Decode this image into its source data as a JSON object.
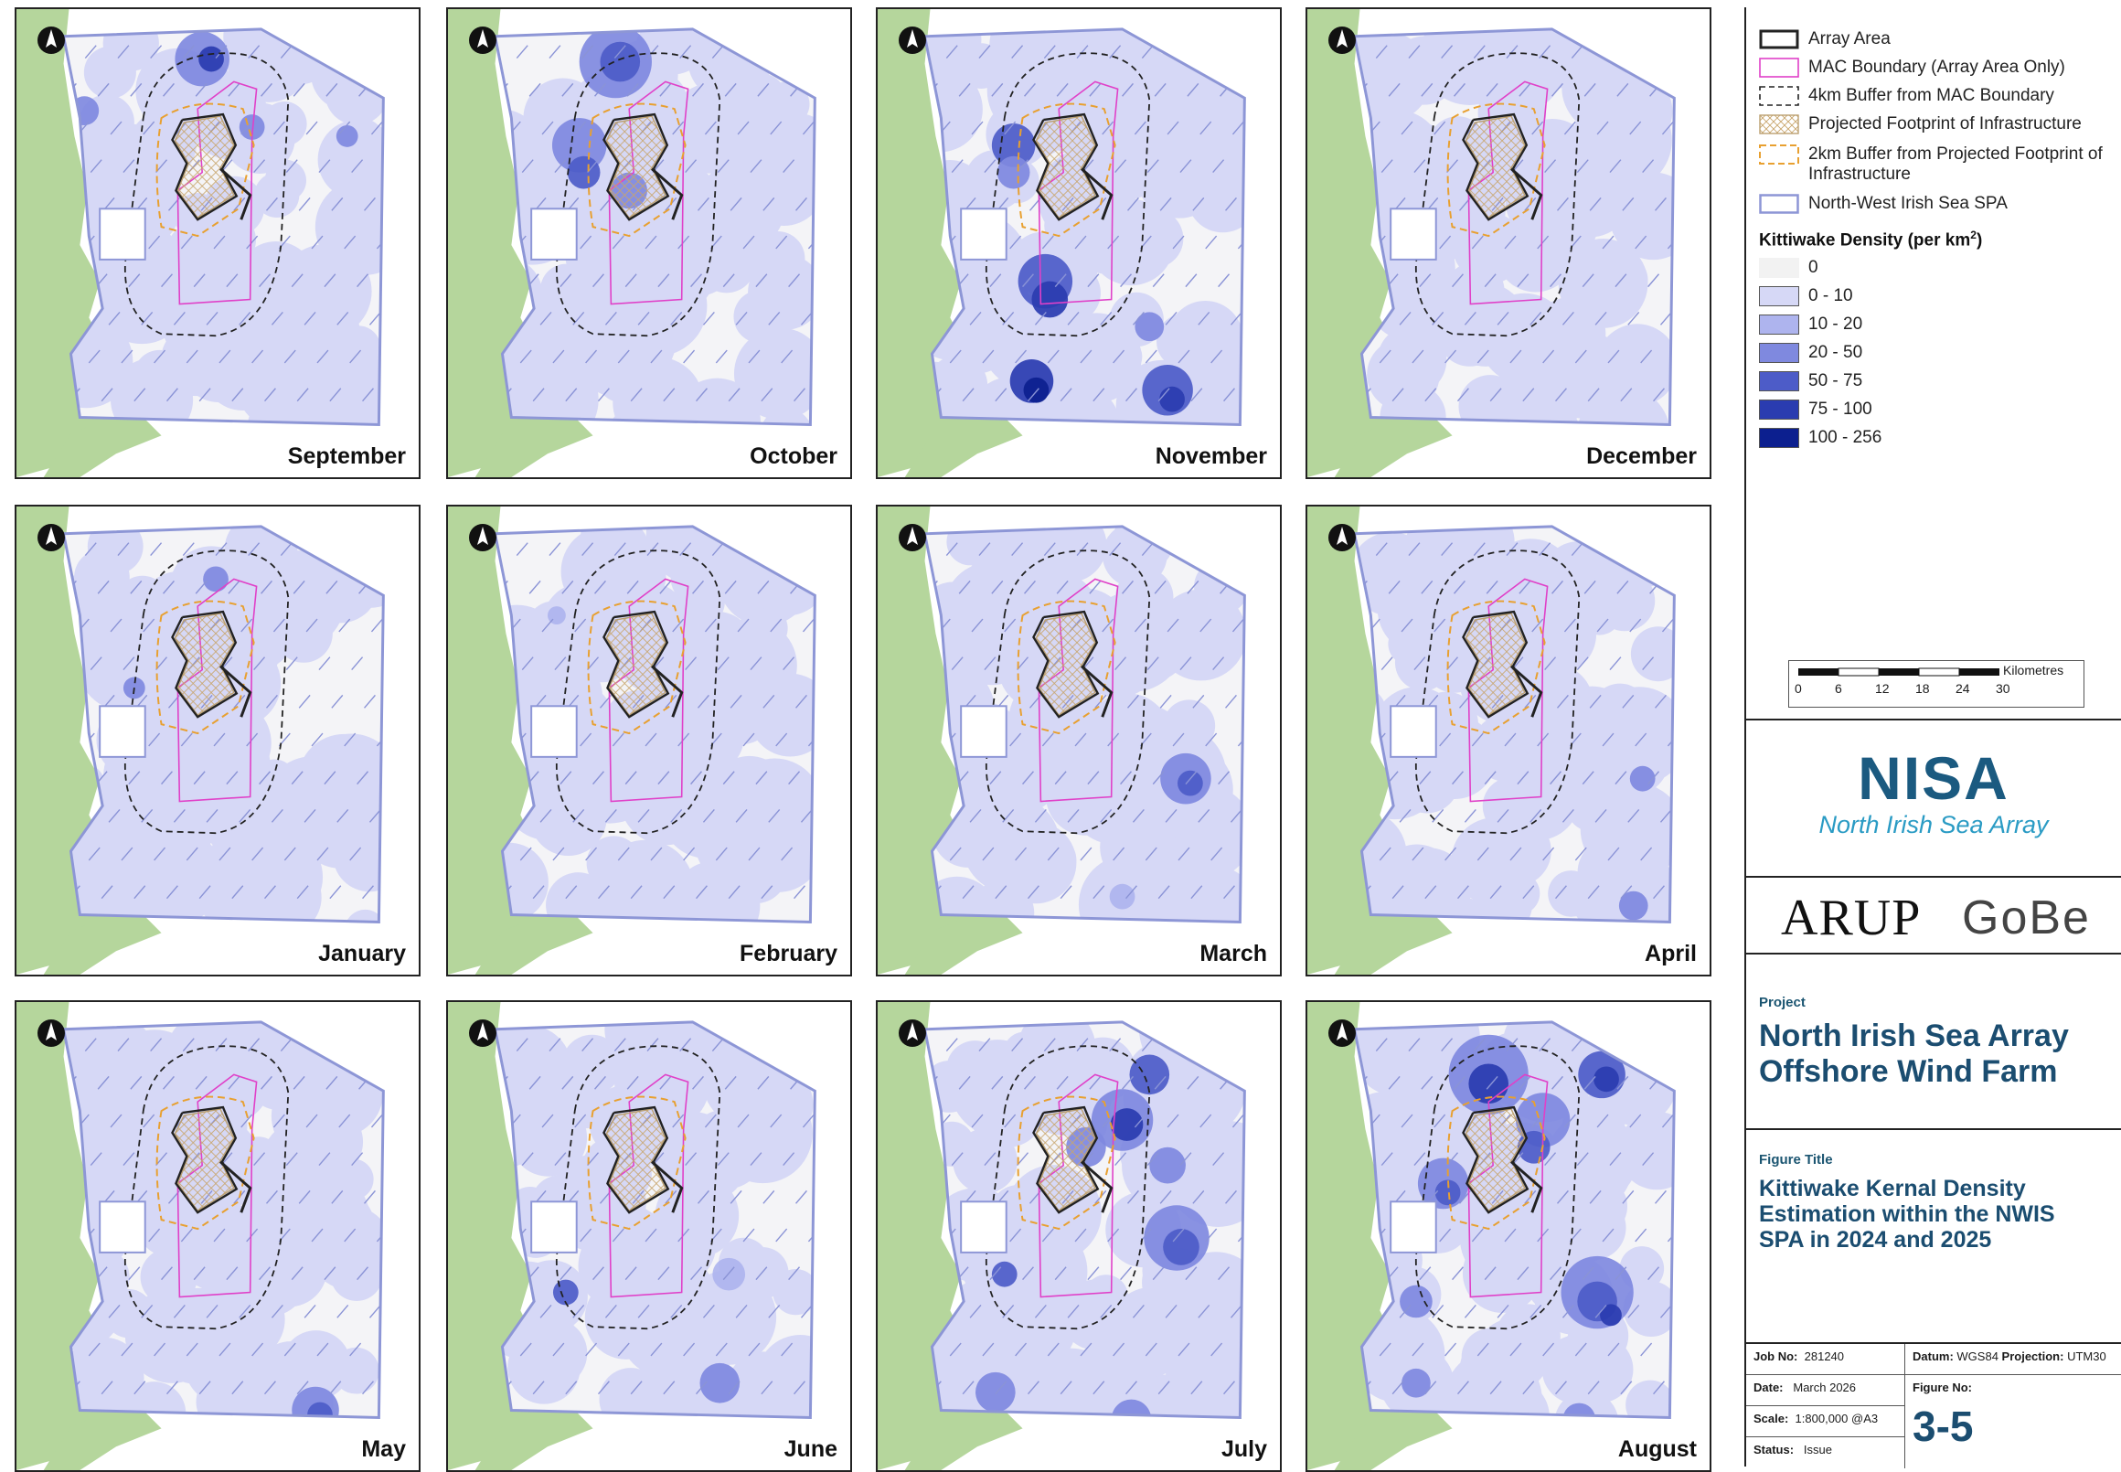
{
  "maps": {
    "months": [
      "September",
      "October",
      "November",
      "December",
      "January",
      "February",
      "March",
      "April",
      "May",
      "June",
      "July",
      "August"
    ]
  },
  "legend": {
    "items": [
      {
        "label": "Array Area",
        "swatch": "array-area"
      },
      {
        "label": "MAC Boundary (Array Area Only)",
        "swatch": "mac-boundary"
      },
      {
        "label": "4km Buffer from MAC Boundary",
        "swatch": "buffer-4km"
      },
      {
        "label": "Projected Footprint of Infrastructure",
        "swatch": "footprint"
      },
      {
        "label": "2km Buffer from Projected Footprint of Infrastructure",
        "swatch": "buffer-2km"
      },
      {
        "label": "North-West Irish Sea SPA",
        "swatch": "spa"
      }
    ],
    "density_heading": "Kittiwake Density (per km",
    "density_heading_sup": "2",
    "density_heading_end": ")",
    "density_classes": [
      {
        "label": "0",
        "color": "#f2f2f2"
      },
      {
        "label": "0 - 10",
        "color": "#d6d8f6"
      },
      {
        "label": "10 - 20",
        "color": "#aeb4ee"
      },
      {
        "label": "20 - 50",
        "color": "#7f89df"
      },
      {
        "label": "50 - 75",
        "color": "#4d5cc8"
      },
      {
        "label": "75 - 100",
        "color": "#2a3cb0"
      },
      {
        "label": "100 - 256",
        "color": "#0c1f8f"
      }
    ],
    "scale": {
      "unit": "Kilometres",
      "ticks": [
        "0",
        "6",
        "12",
        "18",
        "24",
        "30"
      ]
    }
  },
  "logo": {
    "acronym": "NISA",
    "name": "North Irish Sea Array",
    "acronym_color": "#1b5a80",
    "name_color": "#2a9bc4"
  },
  "partners": {
    "left": "ARUP",
    "right": "GoBe"
  },
  "project": {
    "heading": "Project",
    "title_line1": "North Irish Sea Array",
    "title_line2": "Offshore Wind Farm"
  },
  "figure": {
    "heading": "Figure Title",
    "line1": "Kittiwake Kernal Density",
    "line2": "Estimation within the NWIS",
    "line3": "SPA in 2024 and 2025"
  },
  "meta": {
    "job_key": "Job No:",
    "job_val": "281240",
    "datum_key": "Datum:",
    "datum_val": "WGS84",
    "proj_key": "Projection:",
    "proj_val": "UTM30",
    "date_key": "Date:",
    "date_val": "March 2026",
    "figno_key": "Figure No:",
    "figno_val": "3-5",
    "scale_key": "Scale:",
    "scale_val": "1:800,000 @A3",
    "status_key": "Status:",
    "status_val": "Issue"
  }
}
